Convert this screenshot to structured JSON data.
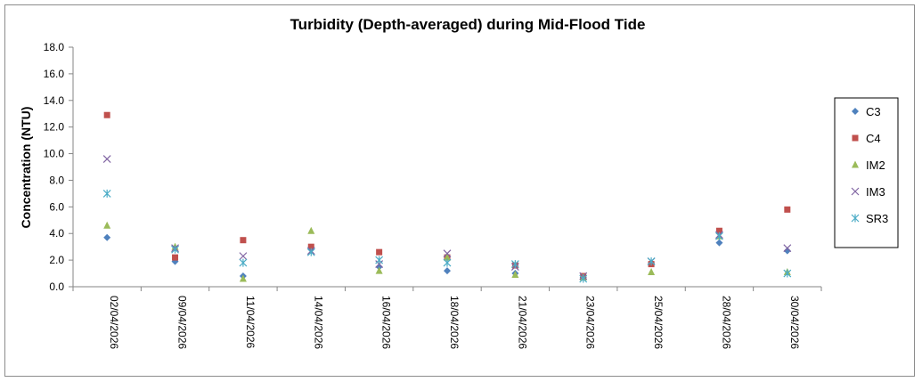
{
  "chart_data": {
    "type": "scatter",
    "title": "Turbidity (Depth-averaged) during Mid-Flood Tide",
    "xlabel": "",
    "ylabel": "Concentration (NTU)",
    "ylim": [
      0,
      18
    ],
    "yticks": [
      "0.0",
      "2.0",
      "4.0",
      "6.0",
      "8.0",
      "10.0",
      "12.0",
      "14.0",
      "16.0",
      "18.0"
    ],
    "categories": [
      "02/04/2026",
      "09/04/2026",
      "11/04/2026",
      "14/04/2026",
      "16/04/2026",
      "18/04/2026",
      "21/04/2026",
      "23/04/2026",
      "25/04/2026",
      "28/04/2026",
      "30/04/2026"
    ],
    "grid": false,
    "legend_position": "right",
    "series": [
      {
        "name": "C3",
        "marker": "diamond",
        "color": "#4f81bd",
        "values": [
          3.7,
          1.9,
          0.8,
          2.8,
          1.5,
          1.2,
          1.0,
          0.7,
          1.8,
          3.3,
          2.7
        ]
      },
      {
        "name": "C4",
        "marker": "square",
        "color": "#c0504d",
        "values": [
          12.9,
          2.2,
          3.5,
          3.0,
          2.6,
          2.2,
          1.6,
          0.8,
          1.7,
          4.2,
          5.8
        ]
      },
      {
        "name": "IM2",
        "marker": "triangle",
        "color": "#9bbb59",
        "values": [
          4.6,
          3.0,
          0.6,
          4.2,
          1.2,
          2.2,
          0.9,
          0.7,
          1.1,
          3.8,
          1.1
        ]
      },
      {
        "name": "IM3",
        "marker": "x",
        "color": "#8064a2",
        "values": [
          9.6,
          2.9,
          2.3,
          2.7,
          1.7,
          2.5,
          1.5,
          0.8,
          1.9,
          3.9,
          2.9
        ]
      },
      {
        "name": "SR3",
        "marker": "star",
        "color": "#4bacc6",
        "values": [
          7.0,
          2.8,
          1.8,
          2.6,
          2.0,
          1.8,
          1.7,
          0.6,
          1.9,
          3.8,
          1.0
        ]
      }
    ]
  }
}
